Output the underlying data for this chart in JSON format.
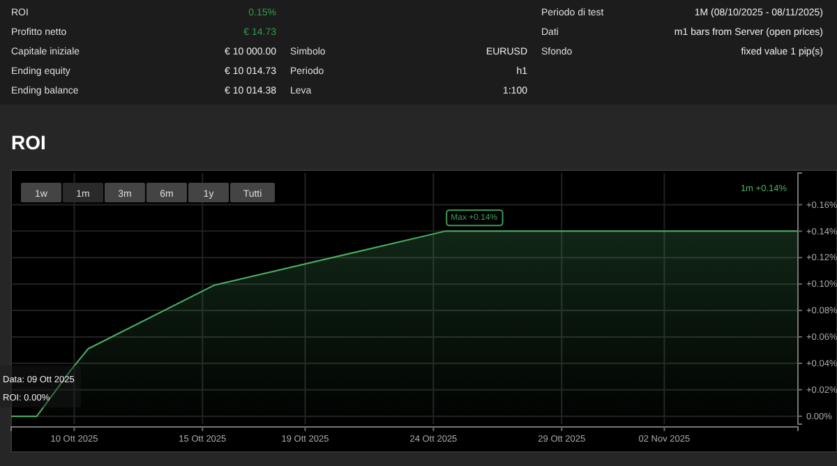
{
  "chart_data": [
    {
      "type": "other",
      "annotations": [
        "ROI",
        "0.15%",
        "Profitto netto",
        "€ 14.73",
        "Capitale iniziale",
        "€ 10 000.00",
        "Ending equity",
        "€ 10 014.73",
        "Ending balance",
        "€ 10 014.38",
        "Simbolo",
        "EURUSD",
        "Periodo",
        "h1",
        "Leva",
        "1:100",
        "Periodo di test",
        "1M (08/10/2025 - 08/11/2025)",
        "Dati",
        "m1 bars from Server (open prices)",
        "Sfondo",
        "fixed value 1 pip(s)"
      ]
    },
    {
      "type": "area",
      "title": "ROI",
      "x": [
        "2025-10-07T13:00",
        "2025-10-08T13:00",
        "2025-10-09T20:00",
        "2025-10-10T13:00",
        "2025-10-15T10:30",
        "2025-10-24T11:00",
        "2025-11-07T05:00"
      ],
      "series": [
        {
          "color": "#4caf65",
          "values": [
            0,
            0,
            0.034,
            0.051,
            0.099,
            0.14,
            0.14
          ]
        }
      ],
      "xlim": [
        "2025-10-07T13:00",
        "2025-11-07T05:00"
      ],
      "xticks": [
        {
          "value": "2025-10-10",
          "label": "10 Ott 2025"
        },
        {
          "value": "2025-10-15",
          "label": "15 Ott 2025"
        },
        {
          "value": "2025-10-19",
          "label": "19 Ott 2025"
        },
        {
          "value": "2025-10-24",
          "label": "24 Ott 2025"
        },
        {
          "value": "2025-10-29",
          "label": "29 Ott 2025"
        },
        {
          "value": "2025-11-02",
          "label": "02 Nov 2025"
        }
      ],
      "ylim": [
        -0.006,
        0.184
      ],
      "yticks": [
        {
          "value": 0,
          "label": "0.00%"
        },
        {
          "value": 0.02,
          "label": "+0.02%"
        },
        {
          "value": 0.04,
          "label": "+0.04%"
        },
        {
          "value": 0.06,
          "label": "+0.06%"
        },
        {
          "value": 0.08,
          "label": "+0.08%"
        },
        {
          "value": 0.1,
          "label": "+0.10%"
        },
        {
          "value": 0.12,
          "label": "+0.12%"
        },
        {
          "value": 0.14,
          "label": "+0.14%"
        },
        {
          "value": 0.16,
          "label": "+0.16%"
        }
      ],
      "grid": true,
      "annotations": [
        "1w",
        "1m",
        "3m",
        "6m",
        "1y",
        "Tutti",
        "1m +0.14%",
        {
          "text": "Max +0.14%",
          "x": "2025-10-24T11:00",
          "y": 0.14
        },
        "Data: 09 Ott 2025",
        "ROI: 0.00%"
      ]
    }
  ]
}
